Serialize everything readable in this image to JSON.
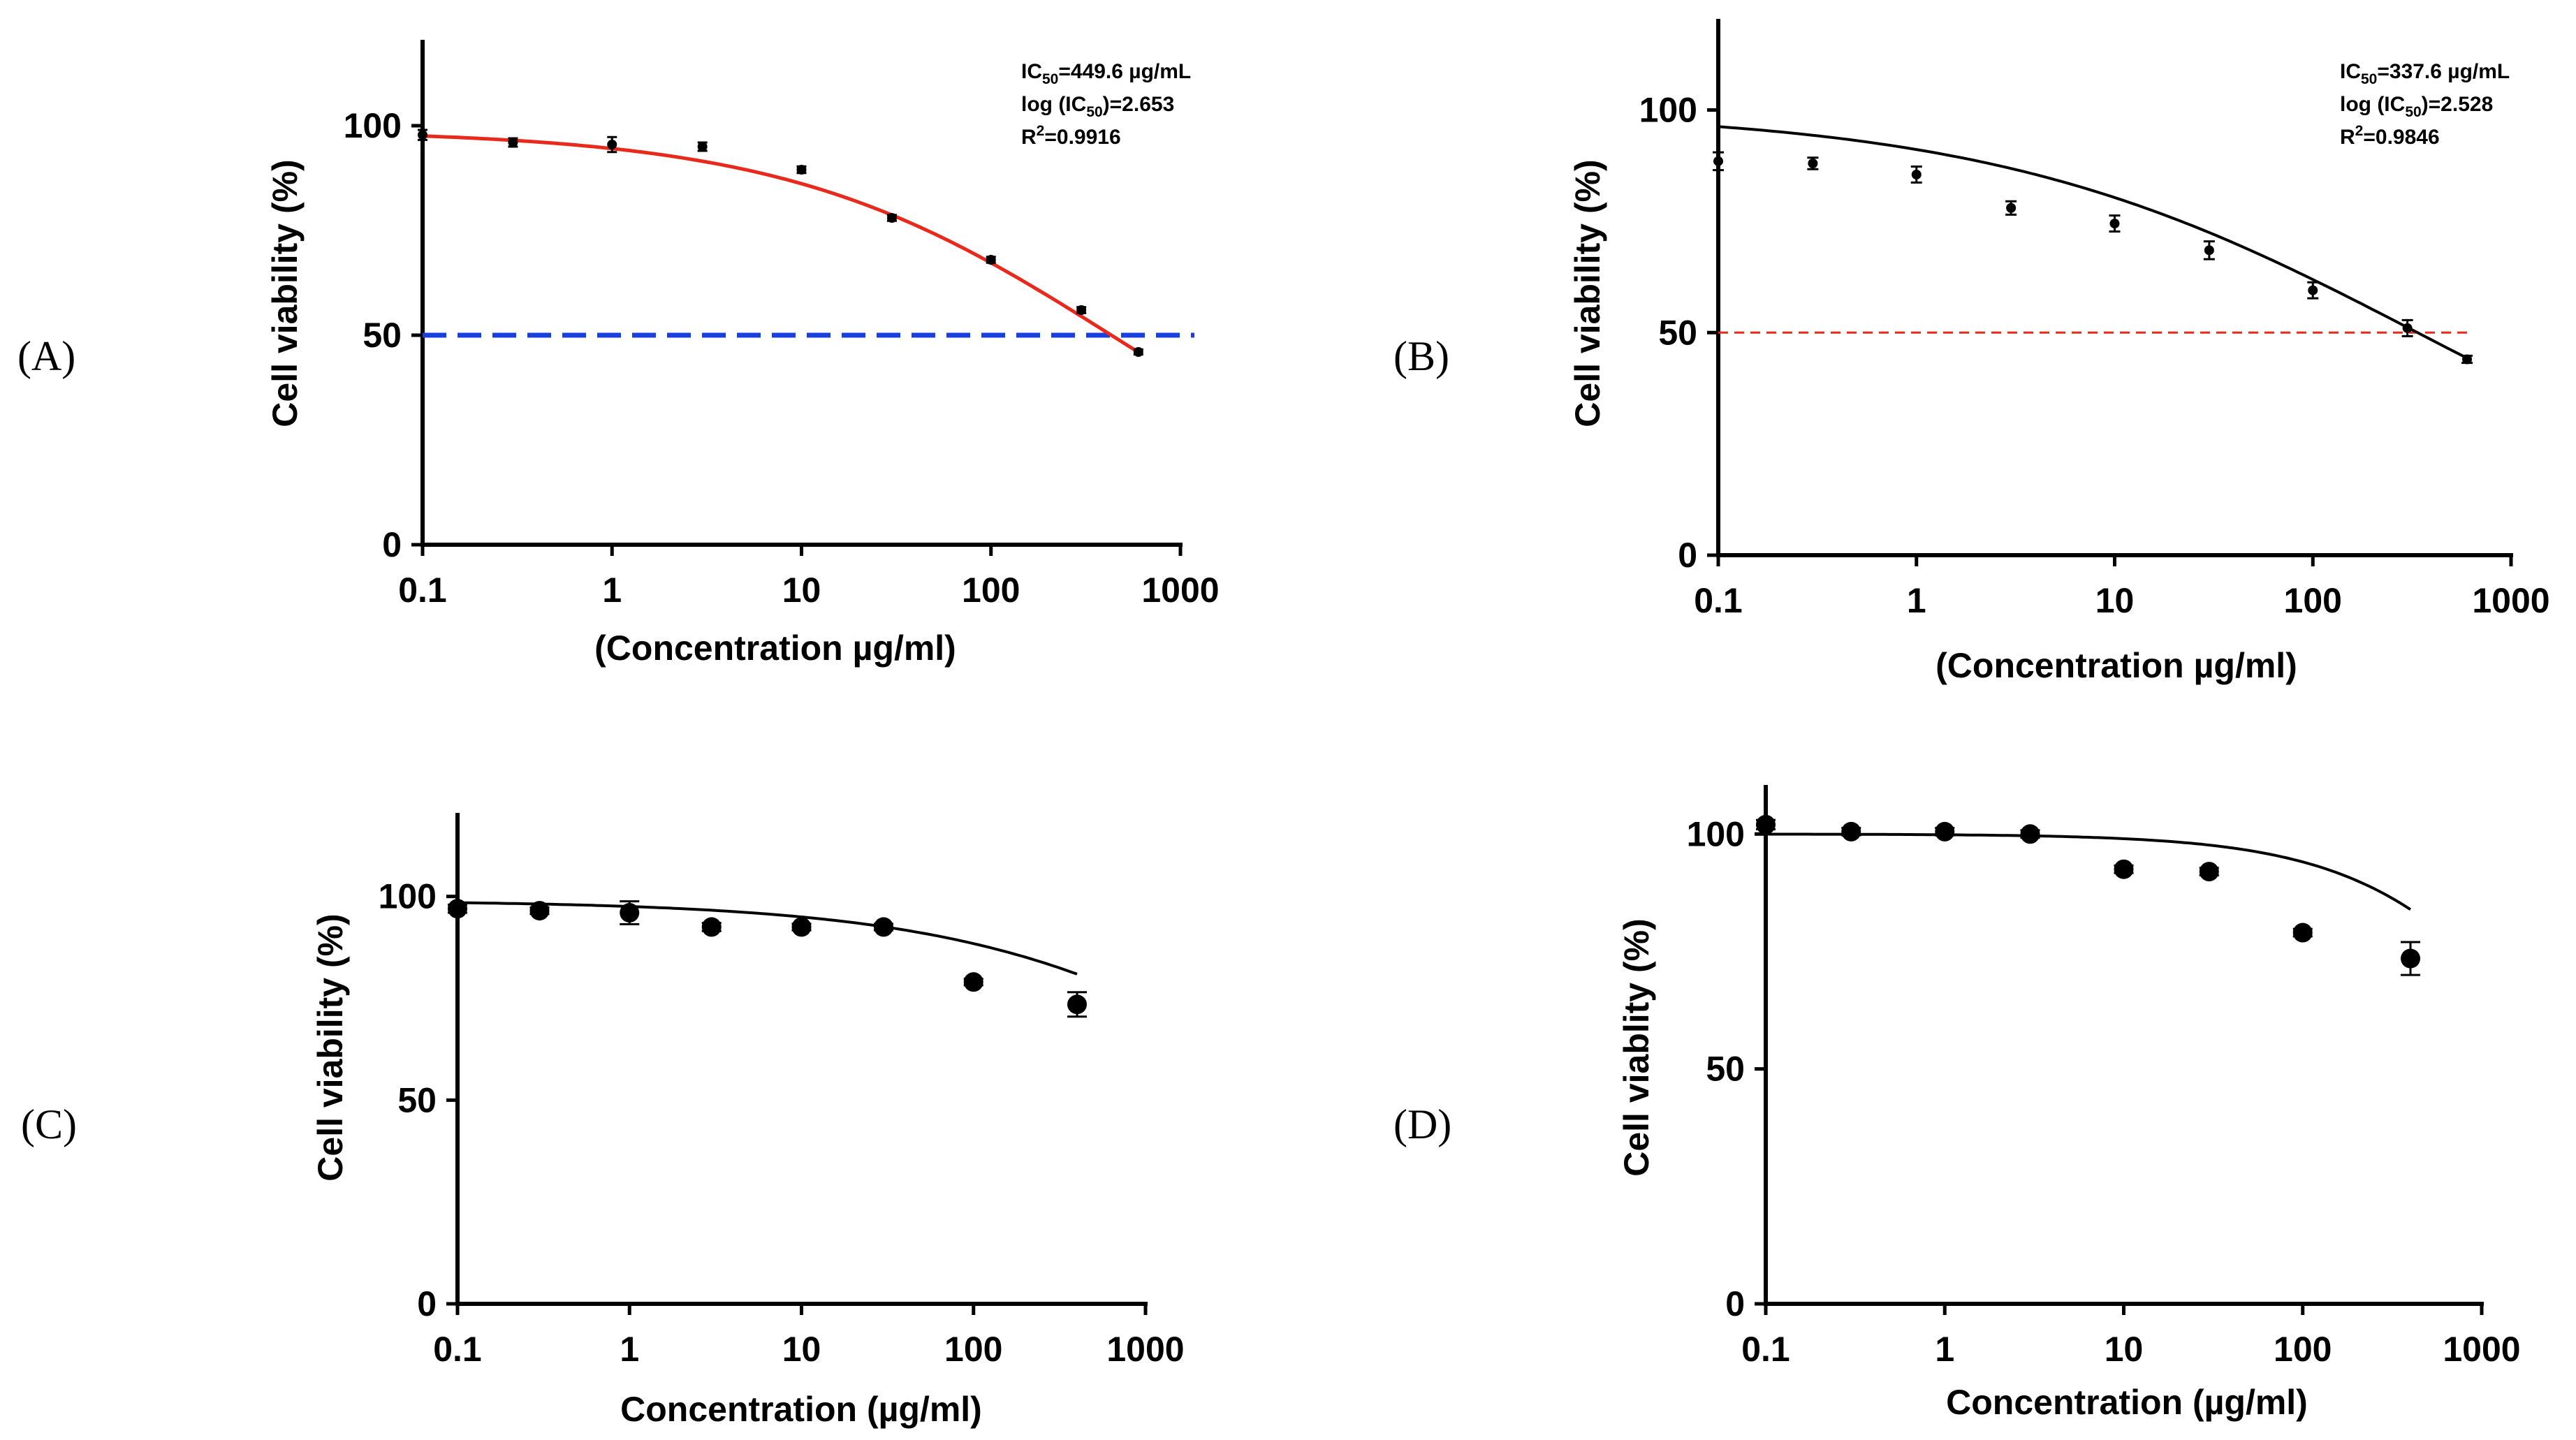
{
  "chart_data": [
    {
      "panel": "(A)",
      "type": "scatter",
      "xscale": "log",
      "xlim": [
        0.1,
        1000
      ],
      "ylim": [
        0,
        120
      ],
      "xticks": [
        "0.1",
        "1",
        "10",
        "100",
        "1000"
      ],
      "yticks": [
        "0",
        "50",
        "100"
      ],
      "xlabel": "(Concentration µg/ml)",
      "ylabel": "Cell viability (%)",
      "annotations": [
        "IC",
        "50",
        "=449.6 µg/mL",
        "log (IC",
        "50",
        ")=2.653",
        "R",
        "2",
        "=0.9916"
      ],
      "fit_color": "#e8291c",
      "reference_line": {
        "y": 50,
        "color": "#1a3fe0",
        "style": "dashed"
      },
      "fit": {
        "top": 99,
        "bottom": 0,
        "log_ic50": 2.653,
        "hill": 0.5
      },
      "points": [
        {
          "x": 0.1,
          "y": 97.8,
          "err": 1.2
        },
        {
          "x": 0.3,
          "y": 96.0,
          "err": 1.0
        },
        {
          "x": 1,
          "y": 95.5,
          "err": 1.8
        },
        {
          "x": 3,
          "y": 95.0,
          "err": 1.0
        },
        {
          "x": 10,
          "y": 89.5,
          "err": 0.8
        },
        {
          "x": 30,
          "y": 78.0,
          "err": 0.7
        },
        {
          "x": 100,
          "y": 68.0,
          "err": 0.7
        },
        {
          "x": 300,
          "y": 56.0,
          "err": 0.7
        },
        {
          "x": 600,
          "y": 46.0,
          "err": 0.6
        }
      ]
    },
    {
      "panel": "(B)",
      "type": "scatter",
      "xscale": "log",
      "xlim": [
        0.1,
        1000
      ],
      "ylim": [
        0,
        120
      ],
      "xticks": [
        "0.1",
        "1",
        "10",
        "100",
        "1000"
      ],
      "yticks": [
        "0",
        "50",
        "100"
      ],
      "xlabel": "(Concentration µg/ml)",
      "ylabel": "Cell viability (%)",
      "annotations": [
        "IC",
        "50",
        "=337.6 µg/mL",
        "log (IC",
        "50",
        ")=2.528",
        "R",
        "2",
        "=0.9846"
      ],
      "fit_color": "#000000",
      "reference_line": {
        "y": 50,
        "color": "#e8291c",
        "style": "dashed"
      },
      "fit": {
        "top": 100,
        "bottom": 0,
        "log_ic50": 2.528,
        "hill": 0.4
      },
      "points": [
        {
          "x": 0.1,
          "y": 88.5,
          "err": 2.0
        },
        {
          "x": 0.3,
          "y": 88.0,
          "err": 1.3
        },
        {
          "x": 1,
          "y": 85.5,
          "err": 1.8
        },
        {
          "x": 3,
          "y": 78.0,
          "err": 1.5
        },
        {
          "x": 10,
          "y": 74.5,
          "err": 1.8
        },
        {
          "x": 30,
          "y": 68.5,
          "err": 2.0
        },
        {
          "x": 100,
          "y": 59.5,
          "err": 1.8
        },
        {
          "x": 300,
          "y": 51.0,
          "err": 1.8
        },
        {
          "x": 600,
          "y": 44.0,
          "err": 0.8
        }
      ]
    },
    {
      "panel": "(C)",
      "type": "scatter",
      "xscale": "log",
      "xlim": [
        0.1,
        1000
      ],
      "ylim": [
        0,
        120
      ],
      "xticks": [
        "0.1",
        "1",
        "10",
        "100",
        "1000"
      ],
      "yticks": [
        "0",
        "50",
        "100"
      ],
      "xlabel": "Concentration (µg/ml)",
      "ylabel": "Cell viability (%)",
      "annotations": [],
      "fit_color": "#000000",
      "reference_line": null,
      "fit": {
        "top": 99,
        "bottom": 0,
        "log_ic50": 4.05,
        "hill": 0.45
      },
      "points": [
        {
          "x": 0.1,
          "y": 97.0,
          "err": 1.0
        },
        {
          "x": 0.3,
          "y": 96.5,
          "err": 0.8
        },
        {
          "x": 1,
          "y": 96.0,
          "err": 2.8
        },
        {
          "x": 3,
          "y": 92.5,
          "err": 1.0
        },
        {
          "x": 10,
          "y": 92.5,
          "err": 0.8
        },
        {
          "x": 30,
          "y": 92.5,
          "err": 0.8
        },
        {
          "x": 100,
          "y": 79.0,
          "err": 0.8
        },
        {
          "x": 400,
          "y": 73.5,
          "err": 3.0
        }
      ]
    },
    {
      "panel": "(D)",
      "type": "scatter",
      "xscale": "log",
      "xlim": [
        0.1,
        1000
      ],
      "ylim": [
        0,
        110
      ],
      "xticks": [
        "0.1",
        "1",
        "10",
        "100",
        "1000"
      ],
      "yticks": [
        "0",
        "50",
        "100"
      ],
      "xlabel": "Concentration (µg/ml)",
      "ylabel": "Cell viablity (%)",
      "annotations": [],
      "fit_color": "#000000",
      "reference_line": null,
      "fit": {
        "top": 100,
        "bottom": 0,
        "log_ic50": 3.5,
        "hill": 0.8
      },
      "points": [
        {
          "x": 0.1,
          "y": 102.0,
          "err": 1.0
        },
        {
          "x": 0.3,
          "y": 100.5,
          "err": 0.8
        },
        {
          "x": 1,
          "y": 100.5,
          "err": 0.8
        },
        {
          "x": 3,
          "y": 100.0,
          "err": 0.8
        },
        {
          "x": 10,
          "y": 92.5,
          "err": 0.8
        },
        {
          "x": 30,
          "y": 92.0,
          "err": 0.8
        },
        {
          "x": 100,
          "y": 79.0,
          "err": 0.8
        },
        {
          "x": 400,
          "y": 73.5,
          "err": 3.5
        }
      ]
    }
  ]
}
